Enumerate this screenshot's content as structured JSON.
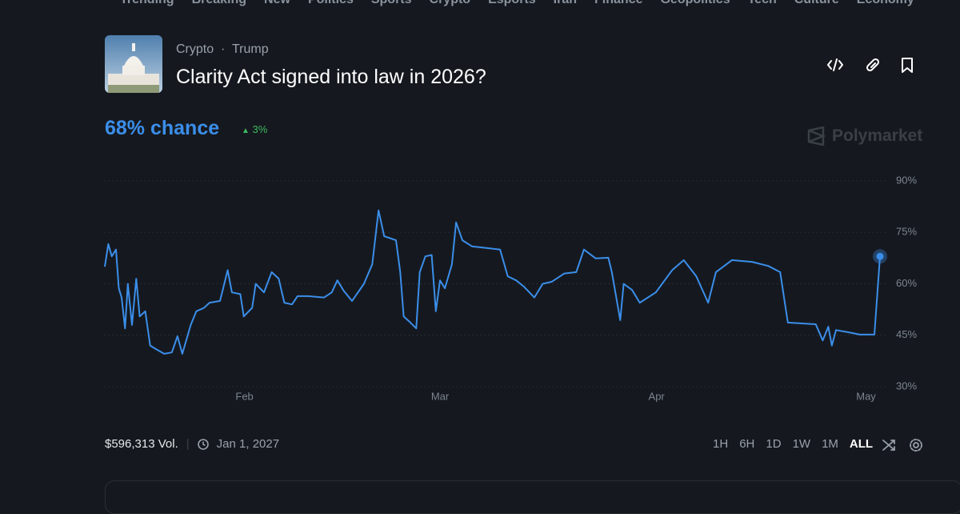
{
  "nav": [
    "Trending",
    "Breaking",
    "New",
    "Politics",
    "Sports",
    "Crypto",
    "Esports",
    "Iran",
    "Finance",
    "Geopolitics",
    "Tech",
    "Culture",
    "Economy"
  ],
  "header": {
    "tags": [
      "Crypto",
      "Trump"
    ],
    "title": "Clarity Act signed into law in 2026?"
  },
  "summary": {
    "chance": "68% chance",
    "change": "3%"
  },
  "brand": "Polymarket",
  "footer": {
    "volume": "$596,313 Vol.",
    "end_date": "Jan 1, 2027",
    "ranges": [
      "1H",
      "6H",
      "1D",
      "1W",
      "1M",
      "ALL"
    ]
  },
  "chart_data": {
    "type": "line",
    "color": "#3b8eea",
    "grid": true,
    "x": [
      12,
      12.5,
      13,
      13.6,
      14,
      14.4,
      14.9,
      15.3,
      15.9,
      16.5,
      17,
      17.8,
      18.5,
      19.3,
      20.5,
      21.6,
      22.4,
      23.1,
      24.3,
      25.1,
      26.2,
      27,
      28.5,
      29.6,
      30.2,
      31.4,
      31.9,
      33.1,
      33.6,
      34.8,
      35.9,
      36.9,
      37.7,
      38.8,
      39.6,
      41.1,
      43.4,
      44.5,
      45.3,
      46.2,
      47.4,
      49.1,
      50.3,
      51.2,
      52,
      53.7,
      54.3,
      54.8,
      55.6,
      56.6,
      57.1,
      57.9,
      58.8,
      59.4,
      60,
      60.7,
      61.7,
      62.3,
      63.2,
      64.6,
      66.9,
      68.6,
      69.7,
      70.9,
      72,
      73.5,
      74.7,
      76,
      77.8,
      79.5,
      80.6,
      82.3,
      84.1,
      84.6,
      85.8,
      86.3,
      87.5,
      88.6,
      90.9,
      93.2,
      94.9,
      96.7,
      98.4,
      99.5,
      101.8,
      104.7,
      107,
      108.7,
      109.8,
      113.8,
      114.8,
      115.6,
      116.1,
      116.7,
      118.4,
      120.1,
      122.2,
      123
    ],
    "values": [
      65,
      71.6,
      68,
      70,
      58.7,
      56,
      47,
      60,
      48,
      61.5,
      50.5,
      52,
      42,
      41,
      39.6,
      40,
      44.7,
      39.6,
      48,
      52,
      53,
      54.5,
      55,
      64,
      57.5,
      57,
      50.5,
      53,
      60,
      57.5,
      63.4,
      61.5,
      54.5,
      54,
      56.4,
      56.4,
      56,
      57.5,
      61,
      58,
      55,
      60,
      65.7,
      81.4,
      73.9,
      72.7,
      63.4,
      50.5,
      49,
      47,
      63.4,
      68,
      68.4,
      52,
      61,
      58.7,
      65.7,
      77.9,
      72.7,
      70.9,
      70.4,
      70,
      62.2,
      61,
      59.2,
      56,
      60,
      60.6,
      63,
      63.4,
      70,
      67.4,
      67.6,
      63.4,
      49.4,
      60,
      58.2,
      54.5,
      57.5,
      63.9,
      66.9,
      62.2,
      54.5,
      63.4,
      66.9,
      66.4,
      65.2,
      63.4,
      48.7,
      48.2,
      43.5,
      47.5,
      42,
      46.5,
      45.9,
      45.2,
      45.2,
      68
    ],
    "xlim": [
      12,
      123
    ],
    "xticks": [
      {
        "value": 32,
        "label": "Feb"
      },
      {
        "value": 60,
        "label": "Mar"
      },
      {
        "value": 91,
        "label": "Apr"
      },
      {
        "value": 121,
        "label": "May"
      }
    ],
    "ylim": [
      30,
      90
    ],
    "yticks": [
      {
        "value": 30,
        "label": "30%"
      },
      {
        "value": 45,
        "label": "45%"
      },
      {
        "value": 60,
        "label": "60%"
      },
      {
        "value": 75,
        "label": "75%"
      },
      {
        "value": 90,
        "label": "90%"
      }
    ]
  }
}
